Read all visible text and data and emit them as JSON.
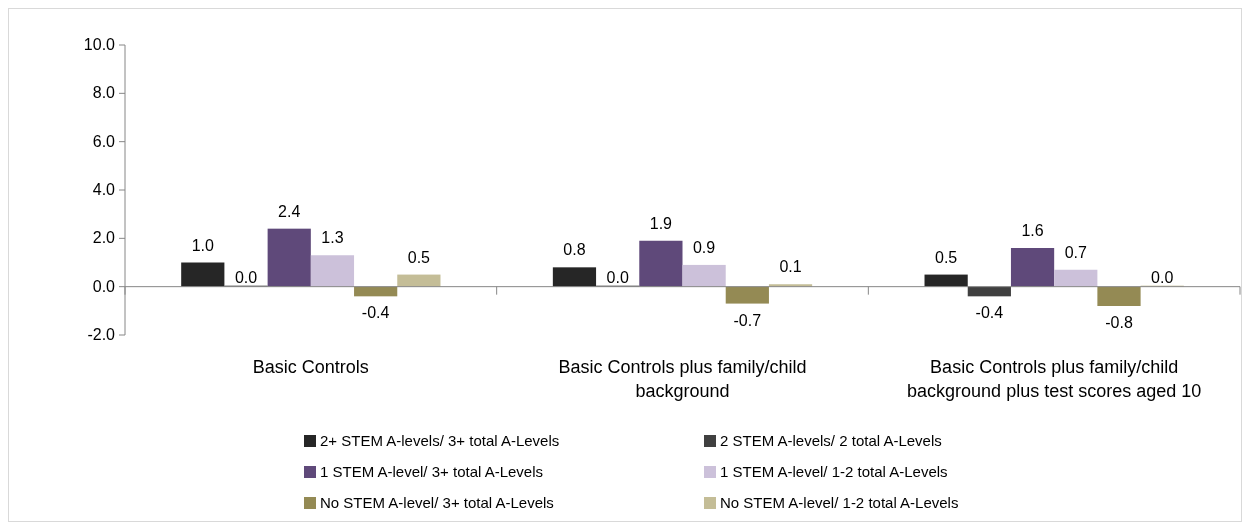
{
  "chart_data": {
    "type": "bar",
    "categories": [
      "Basic Controls",
      "Basic Controls plus family/child background",
      "Basic Controls plus family/child background plus test scores aged 10"
    ],
    "ylim": [
      -2,
      10
    ],
    "yticks": [
      {
        "value": -2,
        "label": "-2.0"
      },
      {
        "value": 0,
        "label": "0.0"
      },
      {
        "value": 2,
        "label": "2.0"
      },
      {
        "value": 4,
        "label": "4.0"
      },
      {
        "value": 6,
        "label": "6.0"
      },
      {
        "value": 8,
        "label": "8.0"
      },
      {
        "value": 10,
        "label": "10.0"
      }
    ],
    "legend": "bottom",
    "series": [
      {
        "name": "2+ STEM A-levels/ 3+ total A-Levels",
        "color": "#262626",
        "values": [
          1.0,
          0.8,
          0.5
        ],
        "value_labels": [
          "1.0",
          "0.8",
          "0.5"
        ]
      },
      {
        "name": "2 STEM A-levels/ 2 total A-Levels",
        "color": "#404040",
        "values": [
          0.0,
          0.0,
          -0.4
        ],
        "value_labels": [
          "0.0",
          "0.0",
          "-0.4"
        ]
      },
      {
        "name": "1 STEM A-level/ 3+ total A-Levels",
        "color": "#5f497a",
        "values": [
          2.4,
          1.9,
          1.6
        ],
        "value_labels": [
          "2.4",
          "1.9",
          "1.6"
        ]
      },
      {
        "name": "1 STEM A-level/ 1-2 total A-Levels",
        "color": "#ccc1da",
        "values": [
          1.3,
          0.9,
          0.7
        ],
        "value_labels": [
          "1.3",
          "0.9",
          "0.7"
        ]
      },
      {
        "name": "No STEM A-level/ 3+ total A-Levels",
        "color": "#948a54",
        "values": [
          -0.4,
          -0.7,
          -0.8
        ],
        "value_labels": [
          "-0.4",
          "-0.7",
          "-0.8"
        ]
      },
      {
        "name": "No STEM A-level/ 1-2 total A-Levels",
        "color": "#c4bd97",
        "values": [
          0.5,
          0.1,
          0.0
        ],
        "value_labels": [
          "0.5",
          "0.1",
          "0.0"
        ]
      }
    ]
  }
}
